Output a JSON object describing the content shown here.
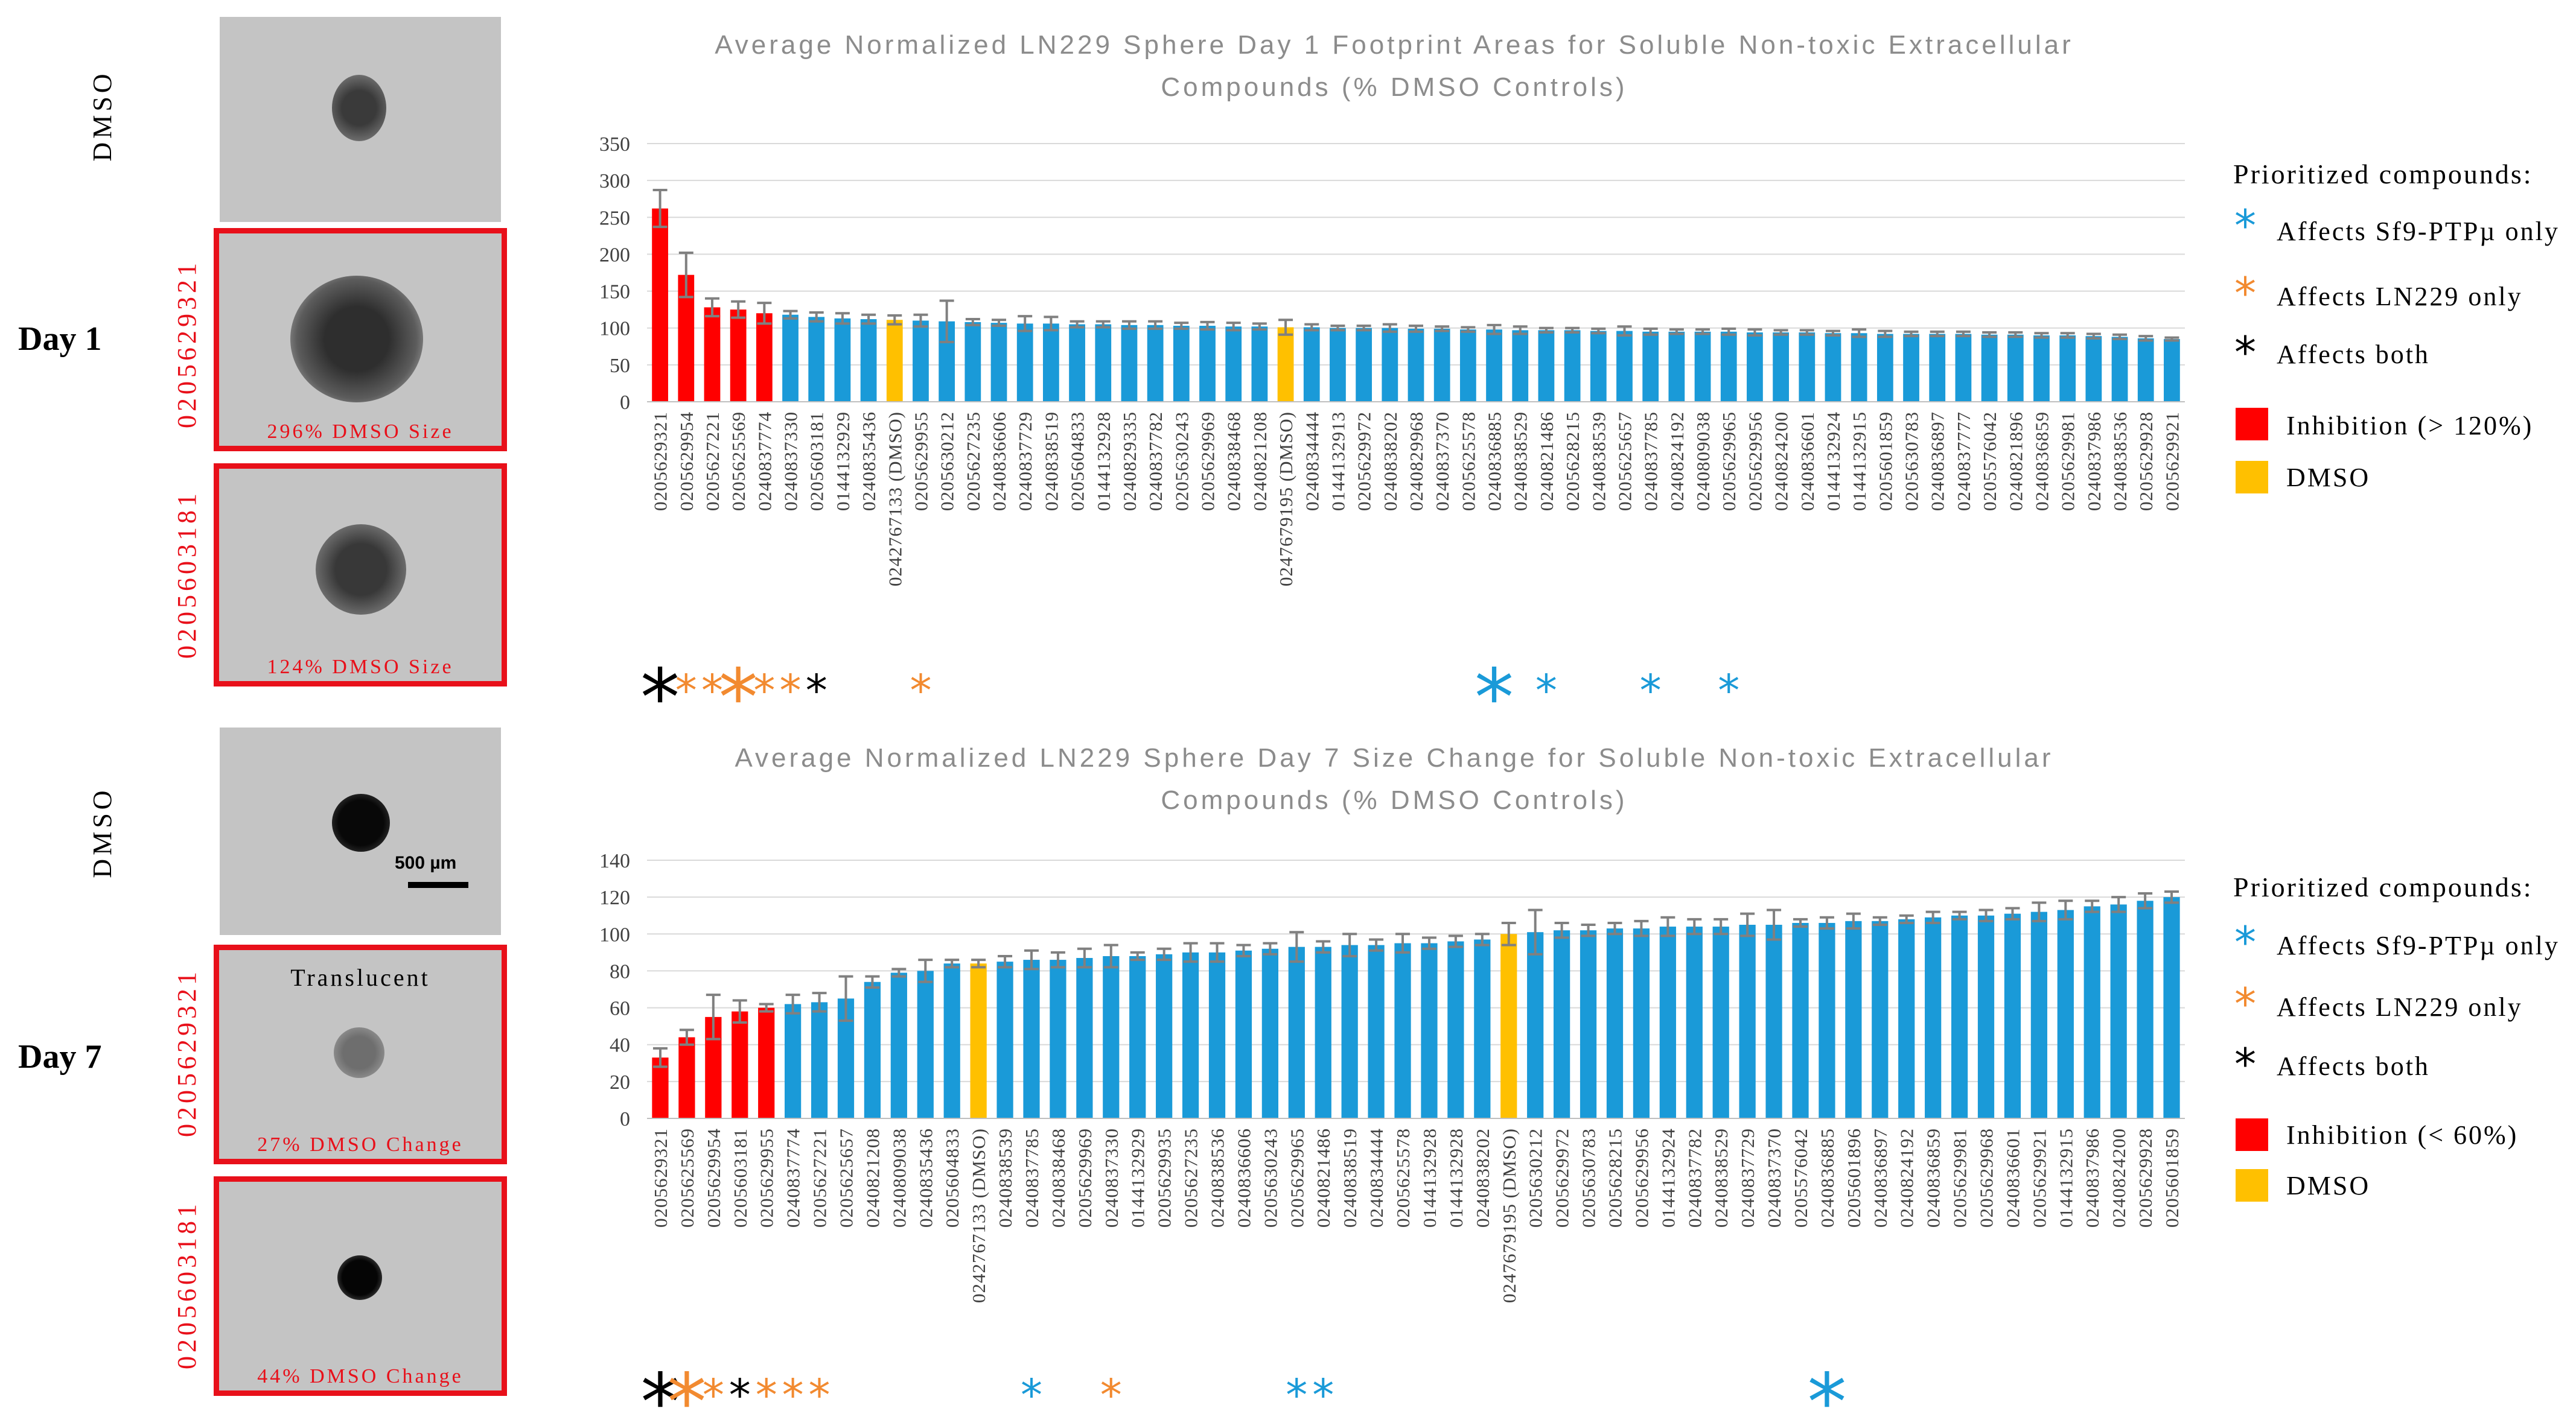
{
  "day_labels": {
    "day1": "Day 1",
    "day7": "Day 7"
  },
  "images": {
    "d1_dmso_label": "DMSO",
    "d1_c1_label": "0205629321",
    "d1_c1_caption": "296% DMSO Size",
    "d1_c2_label": "0205603181",
    "d1_c2_caption": "124% DMSO Size",
    "d7_dmso_label": "DMSO",
    "d7_scale_label": "500 µm",
    "d7_c1_label": "0205629321",
    "d7_c1_note": "Translucent",
    "d7_c1_caption": "27% DMSO Change",
    "d7_c2_label": "0205603181",
    "d7_c2_caption": "44% DMSO Change"
  },
  "legend1": {
    "head": "Prioritized compounds:",
    "blue_label": "Affects Sf9-PTPµ only",
    "orange_label": "Affects LN229 only",
    "black_label": "Affects both",
    "red_label": "Inhibition (> 120%)",
    "yellow_label": "DMSO"
  },
  "legend2": {
    "head": "Prioritized compounds:",
    "blue_label": "Affects Sf9-PTPµ only",
    "orange_label": "Affects LN229 only",
    "black_label": "Affects both",
    "red_label": "Inhibition (< 60%)",
    "yellow_label": "DMSO"
  },
  "colors": {
    "red": "#ff0000",
    "blue": "#1a9ad8",
    "yellow": "#ffc000",
    "orange": "#f28a30",
    "black": "#000000",
    "err": "#808080"
  },
  "star_glyph": "*",
  "chart_data": [
    {
      "type": "bar",
      "title": "Average Normalized LN229 Sphere Day 1 Footprint Areas for Soluble Non-toxic Extracellular Compounds (% DMSO Controls)",
      "ylim": [
        0,
        350
      ],
      "yticks": [
        0,
        50,
        100,
        150,
        200,
        250,
        300,
        350
      ],
      "categories": [
        "0205629321",
        "0205629954",
        "0205627221",
        "0205625569",
        "0240837774",
        "0240837330",
        "0205603181",
        "0144132929",
        "0240835436",
        "0242767133 (DMSO)",
        "0205629955",
        "0205630212",
        "0205627235",
        "0240836606",
        "0240837729",
        "0240838519",
        "0205604833",
        "0144132928",
        "0240829335",
        "0240837782",
        "0205630243",
        "0205629969",
        "0240838468",
        "0240821208",
        "0247679195 (DMSO)",
        "0240834444",
        "0144132913",
        "0205629972",
        "0240838202",
        "0240829968",
        "0240837370",
        "0205625578",
        "0240836885",
        "0240838529",
        "0240821486",
        "0205628215",
        "0240838539",
        "0205625657",
        "0240837785",
        "0240824192",
        "0240809038",
        "0205629965",
        "0205629956",
        "0240824200",
        "0240836601",
        "0144132924",
        "0144132915",
        "0205601859",
        "0205630783",
        "0240836897",
        "0240837777",
        "0205576042",
        "0240821896",
        "0240836859",
        "0205629981",
        "0240837986",
        "0240838536",
        "0205629928",
        "0205629921"
      ],
      "values": [
        262,
        172,
        128,
        125,
        120,
        118,
        115,
        113,
        112,
        111,
        110,
        109,
        108,
        107,
        106,
        106,
        105,
        105,
        104,
        104,
        103,
        103,
        102,
        102,
        101,
        101,
        100,
        100,
        100,
        99,
        99,
        98,
        98,
        97,
        97,
        97,
        96,
        96,
        95,
        95,
        95,
        95,
        94,
        94,
        94,
        93,
        93,
        92,
        92,
        92,
        92,
        91,
        91,
        90,
        90,
        89,
        88,
        86,
        85
      ],
      "errors": [
        25,
        30,
        12,
        11,
        14,
        5,
        6,
        7,
        6,
        6,
        8,
        28,
        4,
        4,
        10,
        9,
        4,
        4,
        5,
        5,
        4,
        5,
        5,
        4,
        10,
        4,
        3,
        3,
        5,
        4,
        3,
        3,
        6,
        5,
        3,
        3,
        3,
        6,
        4,
        3,
        3,
        4,
        4,
        3,
        3,
        3,
        5,
        4,
        3,
        3,
        3,
        3,
        3,
        3,
        3,
        3,
        3,
        3,
        2
      ],
      "bar_colors": [
        "red",
        "red",
        "red",
        "red",
        "red",
        "blue",
        "blue",
        "blue",
        "blue",
        "yellow",
        "blue",
        "blue",
        "blue",
        "blue",
        "blue",
        "blue",
        "blue",
        "blue",
        "blue",
        "blue",
        "blue",
        "blue",
        "blue",
        "blue",
        "yellow",
        "blue",
        "blue",
        "blue",
        "blue",
        "blue",
        "blue",
        "blue",
        "blue",
        "blue",
        "blue",
        "blue",
        "blue",
        "blue",
        "blue",
        "blue",
        "blue",
        "blue",
        "blue",
        "blue",
        "blue",
        "blue",
        "blue",
        "blue",
        "blue",
        "blue",
        "blue",
        "blue",
        "blue",
        "blue",
        "blue",
        "blue",
        "blue",
        "blue",
        "blue"
      ],
      "markers": [
        {
          "index": 0,
          "color": "black",
          "size": "large"
        },
        {
          "index": 1,
          "color": "orange",
          "size": "small"
        },
        {
          "index": 2,
          "color": "orange",
          "size": "small"
        },
        {
          "index": 3,
          "color": "orange",
          "size": "large"
        },
        {
          "index": 4,
          "color": "orange",
          "size": "small"
        },
        {
          "index": 5,
          "color": "orange",
          "size": "small"
        },
        {
          "index": 6,
          "color": "black",
          "size": "small"
        },
        {
          "index": 10,
          "color": "orange",
          "size": "small"
        },
        {
          "index": 32,
          "color": "blue",
          "size": "large"
        },
        {
          "index": 34,
          "color": "blue",
          "size": "small"
        },
        {
          "index": 38,
          "color": "blue",
          "size": "small"
        },
        {
          "index": 41,
          "color": "blue",
          "size": "small"
        }
      ]
    },
    {
      "type": "bar",
      "title": "Average Normalized LN229 Sphere Day 7 Size Change for Soluble Non-toxic Extracellular Compounds (% DMSO Controls)",
      "ylim": [
        0,
        140
      ],
      "yticks": [
        0,
        20,
        40,
        60,
        80,
        100,
        120,
        140
      ],
      "categories": [
        "0205629321",
        "0205625569",
        "0205629954",
        "0205603181",
        "0205629955",
        "0240837774",
        "0205627221",
        "0205625657",
        "0240821208",
        "0240809038",
        "0240835436",
        "0205604833",
        "0242767133 (DMSO)",
        "0240838539",
        "0240837785",
        "0240838468",
        "0205629969",
        "0240837330",
        "0144132929",
        "0205629935",
        "0205627235",
        "0240838536",
        "0240836606",
        "0205630243",
        "0205629965",
        "0240821486",
        "0240838519",
        "0240834444",
        "0205625578",
        "0144132928",
        "0144132928",
        "0240838202",
        "0247679195 (DMSO)",
        "0205630212",
        "0205629972",
        "0205630783",
        "0205628215",
        "0205629956",
        "0144132924",
        "0240837782",
        "0240838529",
        "0240837729",
        "0240837370",
        "0205576042",
        "0240836885",
        "0205601896",
        "0240836897",
        "0240824192",
        "0240836859",
        "0205629981",
        "0205629968",
        "0240836601",
        "0205629921",
        "0144132915",
        "0240837986",
        "0240824200",
        "0205629928",
        "0205601859"
      ],
      "values": [
        33,
        44,
        55,
        58,
        60,
        62,
        63,
        65,
        74,
        79,
        80,
        84,
        84,
        85,
        86,
        86,
        87,
        88,
        88,
        89,
        90,
        90,
        91,
        92,
        93,
        93,
        94,
        94,
        95,
        95,
        96,
        97,
        100,
        101,
        102,
        102,
        103,
        103,
        104,
        104,
        104,
        105,
        105,
        106,
        106,
        107,
        107,
        108,
        109,
        110,
        110,
        111,
        112,
        113,
        115,
        116,
        118,
        120
      ],
      "errors": [
        5,
        4,
        12,
        6,
        2,
        5,
        5,
        12,
        3,
        2,
        6,
        2,
        2,
        3,
        5,
        4,
        5,
        6,
        2,
        3,
        5,
        5,
        3,
        3,
        8,
        3,
        6,
        3,
        5,
        3,
        3,
        3,
        6,
        12,
        4,
        3,
        3,
        4,
        5,
        4,
        4,
        6,
        8,
        2,
        3,
        4,
        2,
        2,
        3,
        2,
        3,
        3,
        5,
        5,
        3,
        4,
        4,
        3
      ],
      "bar_colors": [
        "red",
        "red",
        "red",
        "red",
        "red",
        "blue",
        "blue",
        "blue",
        "blue",
        "blue",
        "blue",
        "blue",
        "yellow",
        "blue",
        "blue",
        "blue",
        "blue",
        "blue",
        "blue",
        "blue",
        "blue",
        "blue",
        "blue",
        "blue",
        "blue",
        "blue",
        "blue",
        "blue",
        "blue",
        "blue",
        "blue",
        "blue",
        "yellow",
        "blue",
        "blue",
        "blue",
        "blue",
        "blue",
        "blue",
        "blue",
        "blue",
        "blue",
        "blue",
        "blue",
        "blue",
        "blue",
        "blue",
        "blue",
        "blue",
        "blue",
        "blue",
        "blue",
        "blue",
        "blue",
        "blue",
        "blue",
        "blue",
        "blue"
      ],
      "markers": [
        {
          "index": 0,
          "color": "black",
          "size": "large"
        },
        {
          "index": 1,
          "color": "orange",
          "size": "large"
        },
        {
          "index": 2,
          "color": "orange",
          "size": "small"
        },
        {
          "index": 3,
          "color": "black",
          "size": "small"
        },
        {
          "index": 4,
          "color": "orange",
          "size": "small"
        },
        {
          "index": 5,
          "color": "orange",
          "size": "small"
        },
        {
          "index": 6,
          "color": "orange",
          "size": "small"
        },
        {
          "index": 14,
          "color": "blue",
          "size": "small"
        },
        {
          "index": 17,
          "color": "orange",
          "size": "small"
        },
        {
          "index": 24,
          "color": "blue",
          "size": "small"
        },
        {
          "index": 25,
          "color": "blue",
          "size": "small"
        },
        {
          "index": 44,
          "color": "blue",
          "size": "large"
        }
      ]
    }
  ]
}
